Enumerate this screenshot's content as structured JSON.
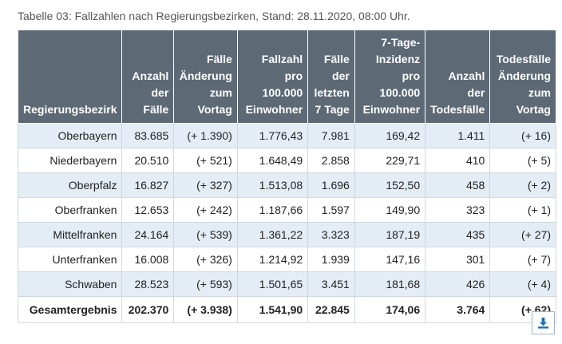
{
  "caption": "Tabelle 03: Fallzahlen nach Regierungsbezirken, Stand: 28.11.2020, 08:00 Uhr.",
  "headers": [
    [
      "Regierungsbezirk"
    ],
    [
      "Anzahl",
      "der Fälle"
    ],
    [
      "Fälle",
      "Änderung",
      "zum",
      "Vortag"
    ],
    [
      "Fallzahl pro",
      "100.000",
      "Einwohner"
    ],
    [
      "Fälle",
      "der",
      "letzten",
      "7 Tage"
    ],
    [
      "7-Tage-",
      "Inzidenz pro",
      "100.000",
      "Einwohner"
    ],
    [
      "Anzahl der",
      "Todesfälle"
    ],
    [
      "Todesfälle",
      "Änderung",
      "zum Vortag"
    ]
  ],
  "rows": [
    [
      "Oberbayern",
      "83.685",
      "(+ 1.390)",
      "1.776,43",
      "7.981",
      "169,42",
      "1.411",
      "(+ 16)"
    ],
    [
      "Niederbayern",
      "20.510",
      "(+ 521)",
      "1.648,49",
      "2.858",
      "229,71",
      "410",
      "(+ 5)"
    ],
    [
      "Oberpfalz",
      "16.827",
      "(+ 327)",
      "1.513,08",
      "1.696",
      "152,50",
      "458",
      "(+ 2)"
    ],
    [
      "Oberfranken",
      "12.653",
      "(+ 242)",
      "1.187,66",
      "1.597",
      "149,90",
      "323",
      "(+ 1)"
    ],
    [
      "Mittelfranken",
      "24.164",
      "(+ 539)",
      "1.361,22",
      "3.323",
      "187,19",
      "435",
      "(+ 27)"
    ],
    [
      "Unterfranken",
      "16.008",
      "(+ 326)",
      "1.214,92",
      "1.939",
      "147,16",
      "301",
      "(+ 7)"
    ],
    [
      "Schwaben",
      "28.523",
      "(+ 593)",
      "1.501,65",
      "3.451",
      "181,68",
      "426",
      "(+ 4)"
    ]
  ],
  "total": [
    "Gesamtergebnis",
    "202.370",
    "(+ 3.938)",
    "1.541,90",
    "22.845",
    "174,06",
    "3.764",
    "(+ 62)"
  ],
  "colors": {
    "header_bg": "#5d6a76",
    "stripe": "#e4edf5",
    "accent": "#1f6fa8"
  },
  "icons": {
    "download": "download-icon"
  }
}
